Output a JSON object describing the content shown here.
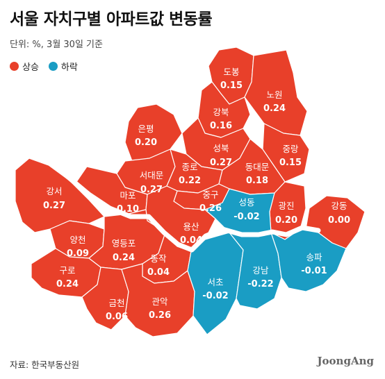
{
  "title": "서울 자치구별 아파트값 변동률",
  "subtitle": "단위: %, 3월 30일 기준",
  "legend": {
    "rise": {
      "label": "상승",
      "color": "#e8402a"
    },
    "fall": {
      "label": "하락",
      "color": "#1a9dc4"
    }
  },
  "districts": [
    {
      "name": "도봉",
      "value": "0.15",
      "trend": "rise"
    },
    {
      "name": "노원",
      "value": "0.24",
      "trend": "rise"
    },
    {
      "name": "강북",
      "value": "0.16",
      "trend": "rise"
    },
    {
      "name": "은평",
      "value": "0.20",
      "trend": "rise"
    },
    {
      "name": "성북",
      "value": "0.27",
      "trend": "rise"
    },
    {
      "name": "중랑",
      "value": "0.15",
      "trend": "rise"
    },
    {
      "name": "서대문",
      "value": "0.27",
      "trend": "rise"
    },
    {
      "name": "종로",
      "value": "0.22",
      "trend": "rise"
    },
    {
      "name": "동대문",
      "value": "0.18",
      "trend": "rise"
    },
    {
      "name": "강서",
      "value": "0.27",
      "trend": "rise"
    },
    {
      "name": "마포",
      "value": "0.10",
      "trend": "rise"
    },
    {
      "name": "중구",
      "value": "0.26",
      "trend": "rise"
    },
    {
      "name": "성동",
      "value": "-0.02",
      "trend": "fall"
    },
    {
      "name": "광진",
      "value": "0.20",
      "trend": "rise"
    },
    {
      "name": "강동",
      "value": "0.00",
      "trend": "rise"
    },
    {
      "name": "양천",
      "value": "0.09",
      "trend": "rise"
    },
    {
      "name": "영등포",
      "value": "0.24",
      "trend": "rise"
    },
    {
      "name": "용산",
      "value": "0.04",
      "trend": "rise"
    },
    {
      "name": "동작",
      "value": "0.04",
      "trend": "rise"
    },
    {
      "name": "구로",
      "value": "0.24",
      "trend": "rise"
    },
    {
      "name": "서초",
      "value": "-0.02",
      "trend": "fall"
    },
    {
      "name": "강남",
      "value": "-0.22",
      "trend": "fall"
    },
    {
      "name": "송파",
      "value": "-0.01",
      "trend": "fall"
    },
    {
      "name": "금천",
      "value": "0.06",
      "trend": "rise"
    },
    {
      "name": "관악",
      "value": "0.26",
      "trend": "rise"
    }
  ],
  "source": "자료: 한국부동산원",
  "logo": "JoongAng"
}
